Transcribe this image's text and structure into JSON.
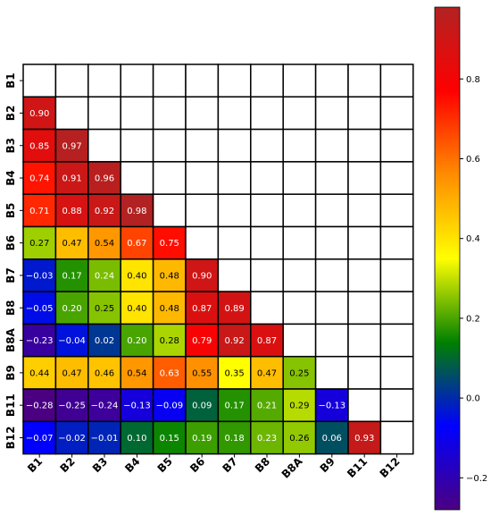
{
  "chart_data": {
    "type": "heatmap",
    "title": "",
    "xlabel": "",
    "ylabel": "",
    "lower_triangle_only": true,
    "categories": [
      "B1",
      "B2",
      "B3",
      "B4",
      "B5",
      "B6",
      "B7",
      "B8",
      "B8A",
      "B9",
      "B11",
      "B12"
    ],
    "rows": [
      [],
      [
        "0.90"
      ],
      [
        "0.85",
        "0.97"
      ],
      [
        "0.74",
        "0.91",
        "0.96"
      ],
      [
        "0.71",
        "0.88",
        "0.92",
        "0.98"
      ],
      [
        "0.27",
        "0.47",
        "0.54",
        "0.67",
        "0.75"
      ],
      [
        "−0.03",
        "0.17",
        "0.24",
        "0.40",
        "0.48",
        "0.90"
      ],
      [
        "−0.05",
        "0.20",
        "0.25",
        "0.40",
        "0.48",
        "0.87",
        "0.89"
      ],
      [
        "−0.23",
        "−0.04",
        "0.02",
        "0.20",
        "0.28",
        "0.79",
        "0.92",
        "0.87"
      ],
      [
        "0.44",
        "0.47",
        "0.46",
        "0.54",
        "0.63",
        "0.55",
        "0.35",
        "0.47",
        "0.25"
      ],
      [
        "−0.28",
        "−0.25",
        "−0.24",
        "−0.13",
        "−0.09",
        "0.09",
        "0.17",
        "0.21",
        "0.29",
        "−0.13"
      ],
      [
        "−0.07",
        "−0.02",
        "−0.01",
        "0.10",
        "0.15",
        "0.19",
        "0.18",
        "0.23",
        "0.26",
        "0.06",
        "0.93"
      ]
    ],
    "colormap": "rainbow (purple-blue-green-yellow-orange-red)",
    "vmin": -0.28,
    "vmax": 0.98,
    "colorbar_ticks": [
      "−0.2",
      "0.0",
      "0.2",
      "0.4",
      "0.6",
      "0.8"
    ],
    "colors": {
      "stops": [
        "#4b0082",
        "#0000ff",
        "#008000",
        "#ffff00",
        "#ff8c00",
        "#ff0000",
        "#b22222"
      ],
      "cell_border": "#000000",
      "empty_cell": "#ffffff"
    }
  }
}
